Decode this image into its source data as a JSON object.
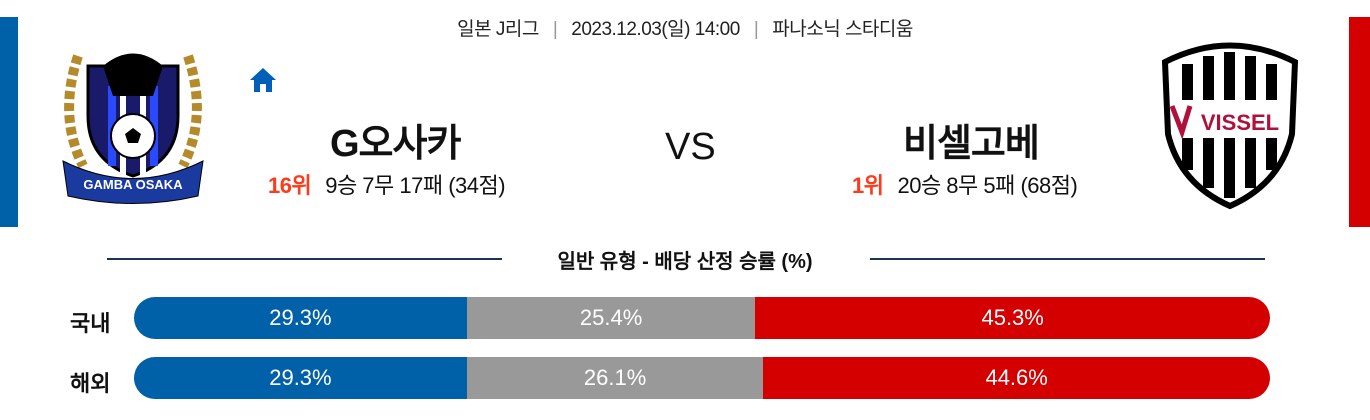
{
  "match": {
    "league": "일본 J리그",
    "datetime": "2023.12.03(일) 14:00",
    "venue": "파나소닉 스타디움",
    "vs": "VS"
  },
  "home": {
    "name": "G오사카",
    "rank": "16위",
    "record": "9승 7무 17패 (34점)",
    "logo_text": "GAMBA OSAKA",
    "color": "#0060a8",
    "icon": "home-icon"
  },
  "away": {
    "name": "비셀고베",
    "rank": "1위",
    "record": "20승 8무 5패 (68점)",
    "logo_text": "VISSEL",
    "color": "#d40000"
  },
  "section_title": "일반 유형 - 배당 산정 승률 (%)",
  "rows": [
    {
      "label": "국내",
      "home": "29.3%",
      "draw": "25.4%",
      "away": "45.3%",
      "home_v": 29.3,
      "draw_v": 25.4,
      "away_v": 45.3
    },
    {
      "label": "해외",
      "home": "29.3%",
      "draw": "26.1%",
      "away": "44.6%",
      "home_v": 29.3,
      "draw_v": 26.1,
      "away_v": 44.6
    }
  ],
  "colors": {
    "home": "#0060a8",
    "draw": "#999999",
    "away": "#d40000",
    "rank": "#ff3a1a"
  }
}
